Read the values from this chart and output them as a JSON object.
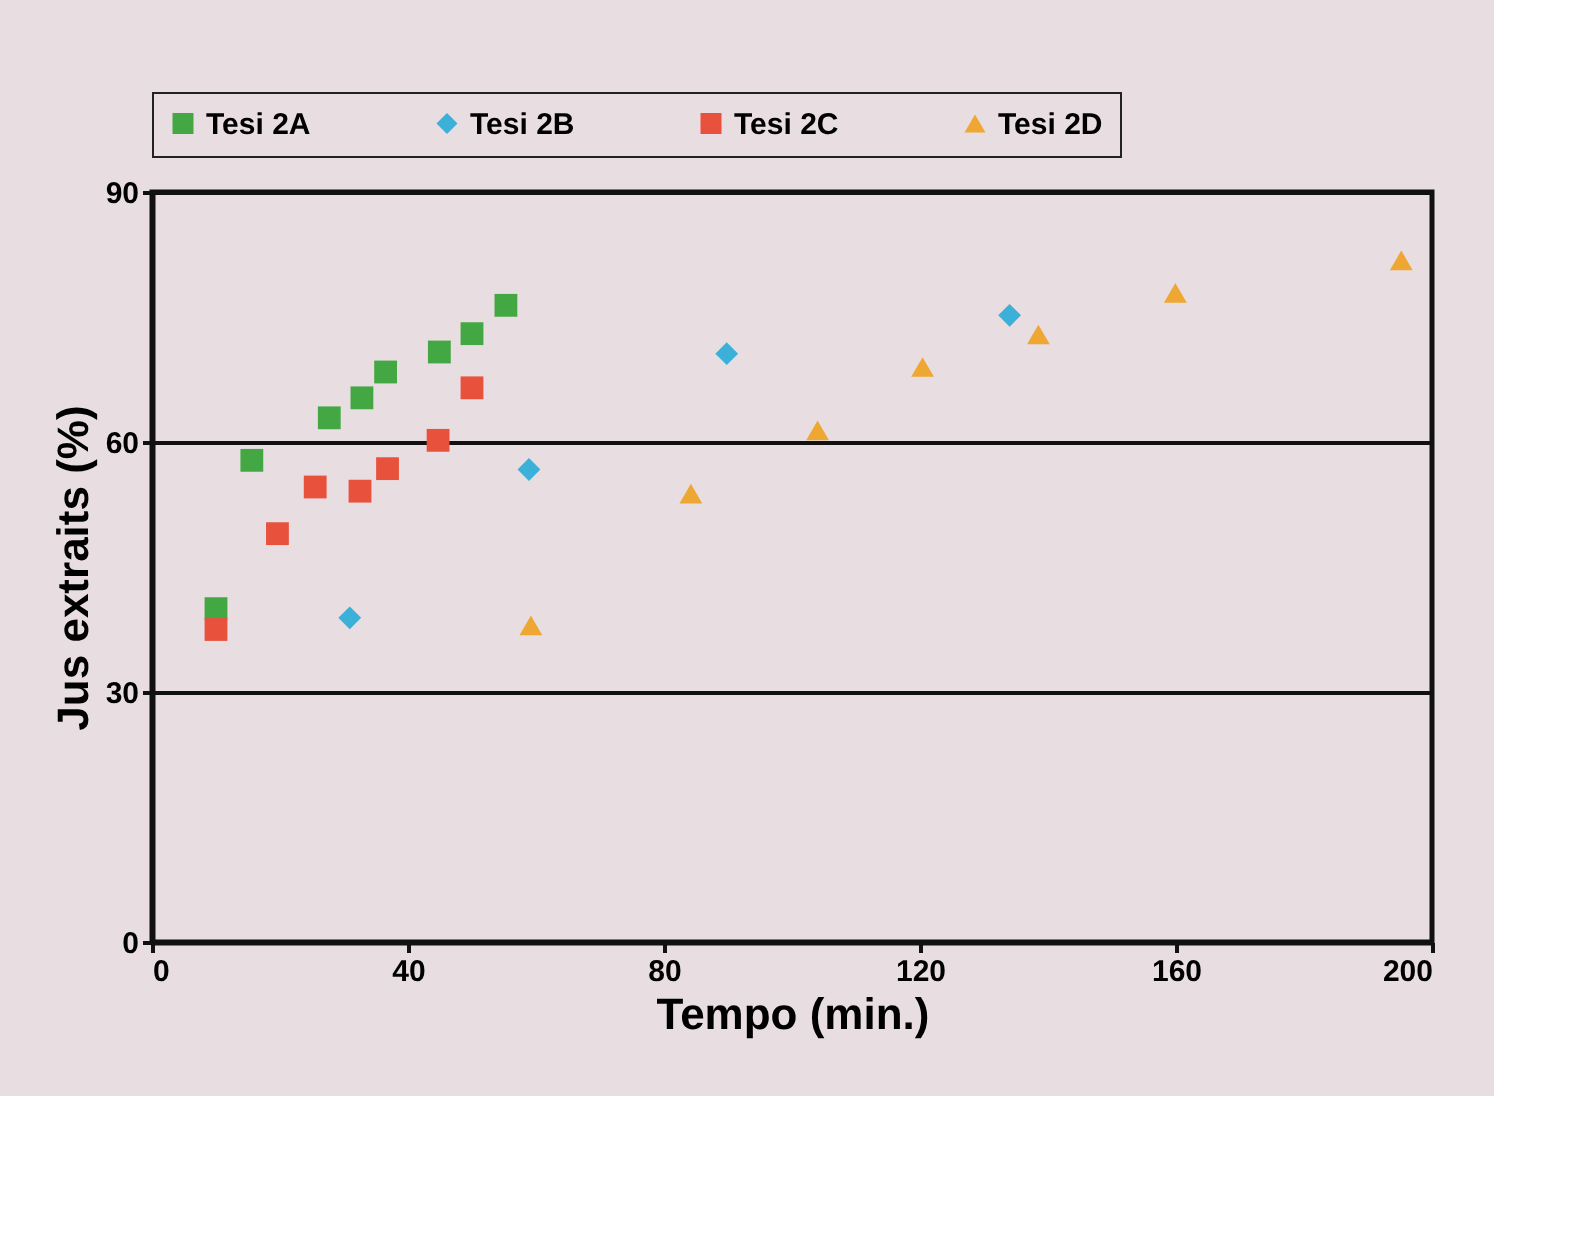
{
  "chart_data": {
    "type": "scatter",
    "xlabel": "Tempo (min.)",
    "ylabel": "Jus extraits (%)",
    "xlim": [
      0,
      200
    ],
    "xticks": [
      0,
      40,
      80,
      120,
      160,
      200
    ],
    "ylim": [
      0,
      90
    ],
    "yticks": [
      0,
      30,
      60,
      90
    ],
    "grid": "y",
    "legend": "top",
    "series": [
      {
        "name": "Tesi 2A",
        "color": "#43a843",
        "marker": "square",
        "x": [
          10,
          15.6,
          27.7,
          32.8,
          36.5,
          44.9,
          50,
          55.3
        ],
        "values": [
          40,
          57.8,
          62.9,
          65.3,
          68.4,
          70.8,
          73,
          76.4
        ]
      },
      {
        "name": "Tesi 2B",
        "color": "#3bb0d8",
        "marker": "diamond",
        "x": [
          30.9,
          58.9,
          89.8,
          134
        ],
        "values": [
          38.9,
          56.7,
          70.6,
          75.2
        ]
      },
      {
        "name": "Tesi 2C",
        "color": "#e8513b",
        "marker": "square",
        "x": [
          10,
          19.6,
          25.5,
          32.5,
          36.8,
          44.7,
          50
        ],
        "values": [
          37.5,
          49,
          54.6,
          54.1,
          56.8,
          60.2,
          66.5
        ]
      },
      {
        "name": "Tesi 2D",
        "color": "#eea732",
        "marker": "triangle",
        "x": [
          59.2,
          84.2,
          104,
          120.4,
          138.5,
          159.9,
          195.2
        ],
        "values": [
          38,
          53.8,
          61.4,
          69,
          72.9,
          77.9,
          81.8
        ]
      }
    ]
  }
}
